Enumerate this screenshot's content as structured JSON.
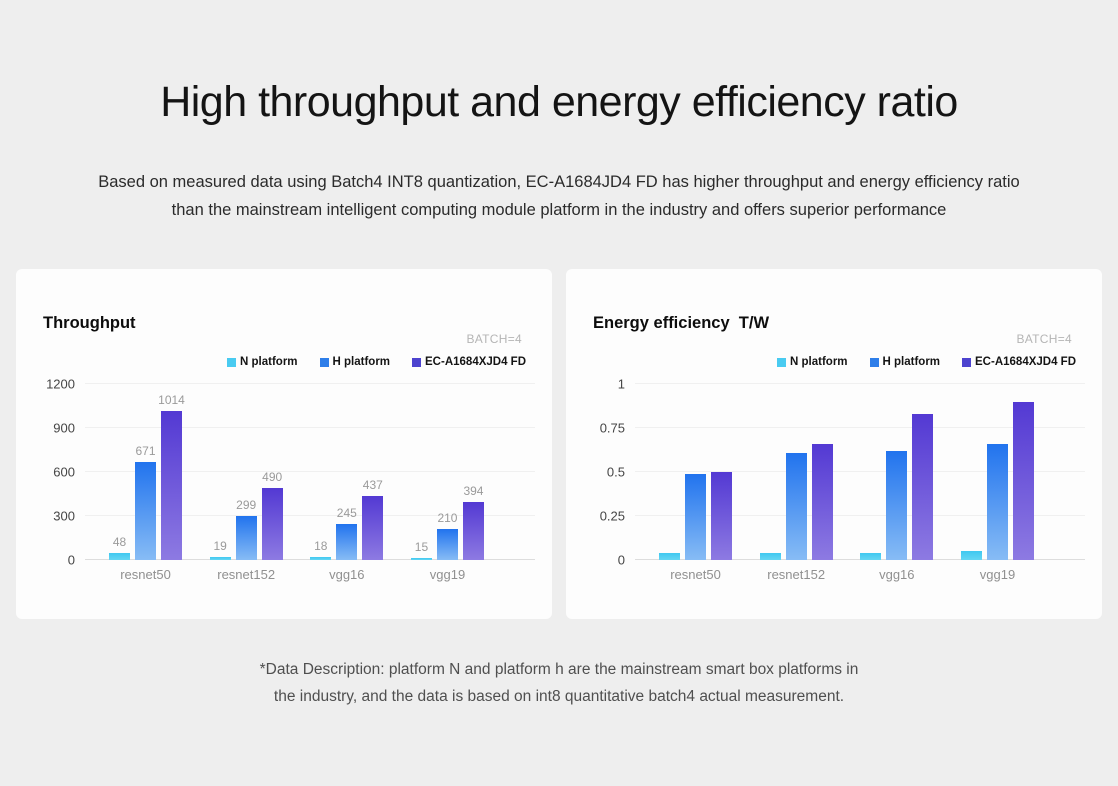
{
  "page": {
    "title": "High throughput and energy efficiency ratio",
    "subtitle_line1": "Based on measured data using Batch4 INT8 quantization, EC-A1684JD4 FD has higher throughput and energy efficiency ratio",
    "subtitle_line2": "than the mainstream intelligent computing module platform in the industry and offers superior performance",
    "footnote_line1": "*Data Description: platform N and platform h are the mainstream smart box platforms in",
    "footnote_line2": "the industry, and the data is based on int8 quantitative batch4 actual measurement."
  },
  "colors": {
    "background": "#eeeeee",
    "card": "#fdfdfd",
    "gridline": "#f0f0f0",
    "baseline": "#dddddd",
    "badge_text": "#b5b5b5",
    "n_platform": "#49cbf1",
    "h_platform": "#2e7ee9",
    "ec_platform": "#4d43cf"
  },
  "chart_data": [
    {
      "type": "bar",
      "title": "Throughput",
      "badge": "BATCH=4",
      "categories": [
        "resnet50",
        "resnet152",
        "vgg16",
        "vgg19"
      ],
      "series": [
        {
          "name": "N platform",
          "values": [
            48,
            19,
            18,
            15
          ],
          "swatch": "#49cbf1",
          "color_top": "#3fc8f0",
          "color_bottom": "#65d6f3"
        },
        {
          "name": "H platform",
          "values": [
            671,
            299,
            245,
            210
          ],
          "swatch": "#2e7ee9",
          "color_top": "#2173ee",
          "color_bottom": "#87bcf5"
        },
        {
          "name": "EC-A1684XJD4 FD",
          "values": [
            1014,
            490,
            437,
            394
          ],
          "swatch": "#4d43cf",
          "color_top": "#5339d3",
          "color_bottom": "#8d7ae2"
        }
      ],
      "ylim": [
        0,
        1200
      ],
      "yticks": [
        0,
        300,
        600,
        900,
        1200
      ],
      "show_value_labels": true,
      "grid": true,
      "legend_position": "top-right",
      "xlabel": "",
      "ylabel": ""
    },
    {
      "type": "bar",
      "title": "Energy efficiency  T/W",
      "badge": "BATCH=4",
      "categories": [
        "resnet50",
        "resnet152",
        "vgg16",
        "vgg19"
      ],
      "series": [
        {
          "name": "N platform",
          "values": [
            0.04,
            0.04,
            0.04,
            0.05
          ],
          "swatch": "#49cbf1",
          "color_top": "#3fc8f0",
          "color_bottom": "#65d6f3"
        },
        {
          "name": "H platform",
          "values": [
            0.49,
            0.61,
            0.62,
            0.66
          ],
          "swatch": "#2e7ee9",
          "color_top": "#2173ee",
          "color_bottom": "#87bcf5"
        },
        {
          "name": "EC-A1684XJD4 FD",
          "values": [
            0.5,
            0.66,
            0.83,
            0.9
          ],
          "swatch": "#4d43cf",
          "color_top": "#5339d3",
          "color_bottom": "#8d7ae2"
        }
      ],
      "ylim": [
        0,
        1
      ],
      "yticks": [
        0,
        0.25,
        0.5,
        0.75,
        1
      ],
      "show_value_labels": false,
      "grid": true,
      "legend_position": "top-right",
      "xlabel": "",
      "ylabel": ""
    }
  ]
}
